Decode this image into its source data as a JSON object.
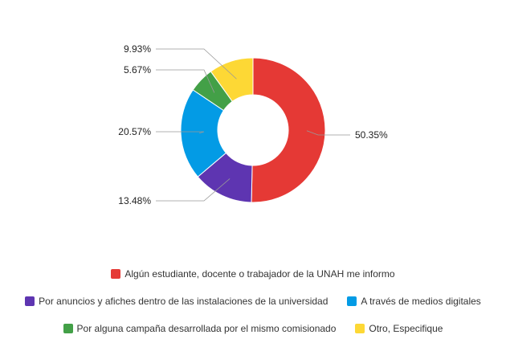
{
  "chart_data": {
    "type": "pie",
    "variant": "donut",
    "series": [
      {
        "name": "Algún estudiante, docente o trabajador de la UNAH me informo",
        "value": 50.35,
        "label": "50.35%",
        "color": "#e53935"
      },
      {
        "name": "Por anuncios y afiches dentro de las instalaciones de la universidad",
        "value": 13.48,
        "label": "13.48%",
        "color": "#5e35b1"
      },
      {
        "name": "A través de medios digitales",
        "value": 20.57,
        "label": "20.57%",
        "color": "#039be5"
      },
      {
        "name": "Por alguna campaña desarrollada por el mismo comisionado",
        "value": 5.67,
        "label": "5.67%",
        "color": "#43a047"
      },
      {
        "name": "Otro, Especifique",
        "value": 9.93,
        "label": "9.93%",
        "color": "#fdd835"
      }
    ],
    "legend_position": "bottom"
  }
}
